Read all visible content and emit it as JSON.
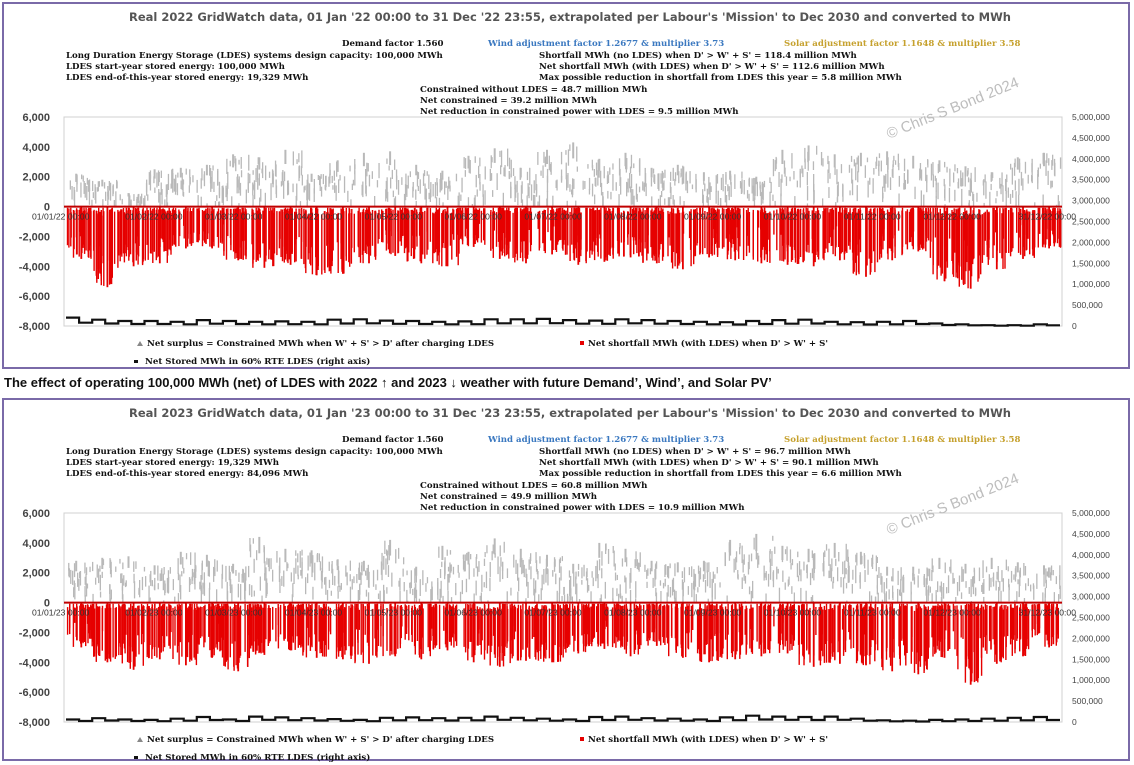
{
  "caption": "The effect of operating 100,000 MWh (net) of LDES with 2022 ↑ and 2023 ↓ weather with future Demand’, Wind’, and Solar PV’",
  "colors": {
    "surplus": "#b9b9b9",
    "shortfall": "#e60000",
    "stored": "#111111",
    "zero_line": "#c00000",
    "wind_text": "#3a78c0",
    "solar_text": "#c6a12e"
  },
  "chart_data": [
    {
      "type": "scatter",
      "title": "Real 2022 GridWatch data, 01 Jan '22 00:00 to 31 Dec '22 23:55,  extrapolated per Labour's 'Mission' to Dec 2030 and converted to MWh",
      "annotations": {
        "demand": "Demand factor 1.560",
        "wind": "Wind adjustment factor 1.2677 & multiplier 3.73",
        "solar": "Solar adjustment factor 1.1648 & multiplier 3.58",
        "ldes_capacity": "Long Duration Energy Storage (LDES) systems design capacity: 100,000 MWh",
        "ldes_start": "LDES start-year stored energy: 100,000 MWh",
        "ldes_end": "LDES end-of-this-year stored energy: 19,329 MWh",
        "shortfall_no_ldes": "Shortfall MWh (no LDES) when D' > W' + S' = 118.4 million MWh",
        "net_shortfall": "Net shortfall MWh (with LDES) when D' > W' + S' = 112.6 million MWh",
        "max_reduction": "Max possible reduction in shortfall from LDES this year = 5.8 million MWh",
        "constrained": "Constrained without LDES = 48.7 million MWh",
        "net_constrained": "Net constrained = 39.2 million MWh",
        "net_reduction": "Net reduction in constrained power with LDES = 9.5 million MWh"
      },
      "watermark": "© Chris S Bond 2024",
      "y_left": {
        "lim": [
          -8000,
          6000
        ],
        "ticks": [
          "6,000",
          "4,000",
          "2,000",
          "0",
          "-2,000",
          "-4,000",
          "-6,000",
          "-8,000"
        ]
      },
      "y_right": {
        "lim": [
          0,
          5000000
        ],
        "ticks": [
          "5,000,000",
          "4,500,000",
          "4,000,000",
          "3,500,000",
          "3,000,000",
          "2,500,000",
          "2,000,000",
          "1,500,000",
          "1,000,000",
          "500,000",
          "0"
        ]
      },
      "x_first_label": "01/01/22 00:00",
      "x_last_label": "31/12/22 00:00",
      "x_labels_overlapping": [
        "01/02/22 00:00",
        "01/03/22 00:00",
        "01/04/22 00:00",
        "01/05/22 00:00",
        "01/06/22 00:00",
        "01/07/22 00:00",
        "01/08/22 00:00",
        "01/09/22 00:00",
        "01/10/22 00:00",
        "01/11/22 00:00",
        "01/12/22 00:00"
      ],
      "surplus_envelope": [
        2200,
        1800,
        900,
        2500,
        2600,
        2800,
        3500,
        3300,
        3800,
        2200,
        3100,
        3600,
        3700,
        2800,
        2400,
        3400,
        3900,
        2600,
        3800,
        4300,
        3200,
        3600,
        2600,
        2800,
        2300,
        2400,
        2000,
        3800,
        4100,
        3500,
        3600,
        3700,
        3400,
        3100,
        2700,
        2300,
        3300,
        3600
      ],
      "shortfall_envelope": [
        -3500,
        -5400,
        -4000,
        -3800,
        -2800,
        -2800,
        -3600,
        -4100,
        -3900,
        -4600,
        -4500,
        -3800,
        -3300,
        -3800,
        -4000,
        -2700,
        -3500,
        -3800,
        -3200,
        -3900,
        -3700,
        -3400,
        -3800,
        -4200,
        -3400,
        -3600,
        -3800,
        -3900,
        -4000,
        -3600,
        -4700,
        -3600,
        -3000,
        -5000,
        -5500,
        -4200,
        -3500,
        -2800
      ],
      "stored_envelope": [
        200000,
        150000,
        120000,
        120000,
        100000,
        140000,
        120000,
        100000,
        110000,
        100000,
        150000,
        160000,
        130000,
        120000,
        100000,
        110000,
        160000,
        160000,
        170000,
        140000,
        130000,
        160000,
        140000,
        120000,
        100000,
        90000,
        120000,
        140000,
        150000,
        100000,
        90000,
        100000,
        120000,
        60000,
        40000,
        20000,
        20000,
        40000
      ],
      "legend": [
        "Net surplus = Constrained MWh when W' + S' > D' after charging LDES",
        "Net shortfall MWh (with LDES) when D' > W' + S'",
        "Net Stored MWh in 60% RTE LDES (right axis)"
      ]
    },
    {
      "type": "scatter",
      "title": "Real 2023 GridWatch data, 01 Jan '23 00:00 to 31 Dec '23 23:55,  extrapolated per Labour's 'Mission' to Dec 2030 and converted to MWh",
      "annotations": {
        "demand": "Demand factor 1.560",
        "wind": "Wind adjustment factor 1.2677 & multiplier 3.73",
        "solar": "Solar adjustment factor 1.1648 & multiplier 3.58",
        "ldes_capacity": "Long Duration Energy Storage (LDES) systems design capacity: 100,000 MWh",
        "ldes_start": "LDES start-year stored energy: 19,329 MWh",
        "ldes_end": "LDES end-of-this-year stored energy: 84,096 MWh",
        "shortfall_no_ldes": "Shortfall MWh (no LDES) when D' > W' + S' = 96.7 million MWh",
        "net_shortfall": "Net shortfall MWh (with LDES) when D' > W' + S' = 90.1 million MWh",
        "max_reduction": "Max possible reduction in shortfall from LDES this year = 6.6 million MWh",
        "constrained": "Constrained without LDES = 60.8 million MWh",
        "net_constrained": "Net constrained = 49.9 million MWh",
        "net_reduction": "Net reduction in constrained power with LDES = 10.9 million MWh"
      },
      "watermark": "© Chris S Bond 2024",
      "y_left": {
        "lim": [
          -8000,
          6000
        ],
        "ticks": [
          "6,000",
          "4,000",
          "2,000",
          "0",
          "-2,000",
          "-4,000",
          "-6,000",
          "-8,000"
        ]
      },
      "y_right": {
        "lim": [
          0,
          5000000
        ],
        "ticks": [
          "5,000,000",
          "4,500,000",
          "4,000,000",
          "3,500,000",
          "3,000,000",
          "2,500,000",
          "2,000,000",
          "1,500,000",
          "1,000,000",
          "500,000",
          "0"
        ]
      },
      "x_first_label": "01/01/23 00:00",
      "x_last_label": "31/12/23 00:00",
      "x_labels_overlapping": [
        "01/02/23 00:00",
        "01/03/23 00:00",
        "01/04/23 00:00",
        "01/05/23 00:00",
        "01/06/23 00:00",
        "01/07/23 00:00",
        "01/08/23 00:00",
        "01/09/23 00:00",
        "01/10/23 00:00",
        "01/11/23 00:00",
        "01/12/23 00:00"
      ],
      "surplus_envelope": [
        2800,
        3000,
        3100,
        2500,
        3400,
        3200,
        2600,
        4400,
        3600,
        3500,
        2900,
        2800,
        4200,
        2400,
        3800,
        3400,
        4300,
        3600,
        3200,
        2600,
        4000,
        3600,
        2800,
        2700,
        2800,
        4200,
        4600,
        3800,
        3600,
        4000,
        3400,
        2400,
        2400,
        3000,
        2600,
        3000,
        2700,
        2500
      ],
      "shortfall_envelope": [
        -3000,
        -4000,
        -4500,
        -3800,
        -4200,
        -3700,
        -4600,
        -3500,
        -3200,
        -3700,
        -3800,
        -4100,
        -3600,
        -3800,
        -3200,
        -4000,
        -4300,
        -3900,
        -4000,
        -3400,
        -3100,
        -3600,
        -2900,
        -3700,
        -4000,
        -3800,
        -3600,
        -3400,
        -4300,
        -4100,
        -4200,
        -4600,
        -4800,
        -3700,
        -5500,
        -4100,
        -3600,
        -3000
      ],
      "stored_envelope": [
        60000,
        90000,
        60000,
        50000,
        80000,
        120000,
        60000,
        130000,
        110000,
        90000,
        70000,
        50000,
        100000,
        110000,
        90000,
        100000,
        130000,
        100000,
        80000,
        60000,
        120000,
        130000,
        90000,
        80000,
        60000,
        110000,
        150000,
        130000,
        120000,
        130000,
        80000,
        40000,
        30000,
        50000,
        60000,
        80000,
        100000,
        120000
      ],
      "legend": [
        "Net surplus = Constrained MWh when W' + S' > D' after charging LDES",
        "Net shortfall MWh (with LDES) when D' > W' + S'",
        "Net Stored MWh in 60% RTE LDES (right axis)"
      ]
    }
  ]
}
